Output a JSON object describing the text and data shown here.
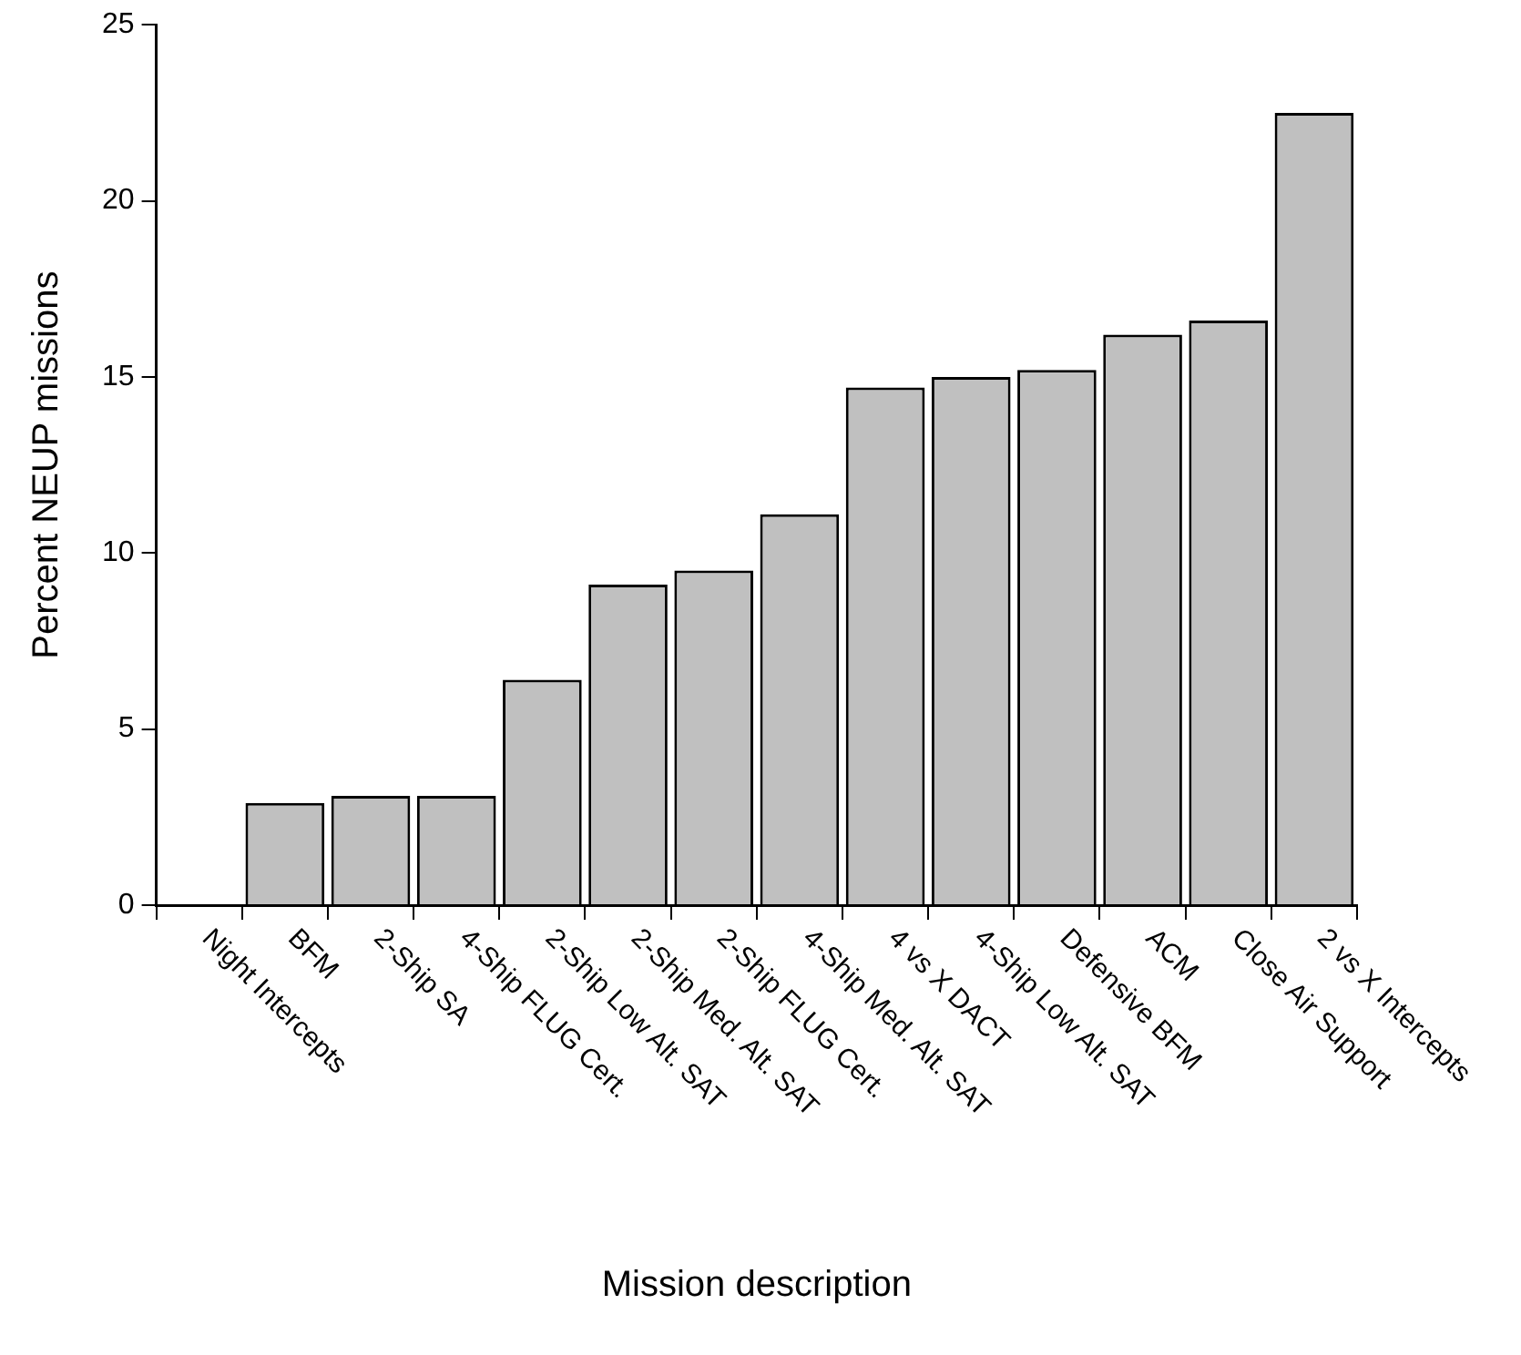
{
  "chart_data": {
    "type": "bar",
    "xlabel": "Mission description",
    "ylabel": "Percent NEUP missions",
    "categories": [
      "Night Intercepts",
      "BFM",
      "2-Ship SA",
      "4-Ship FLUG Cert.",
      "2-Ship Low Alt. SAT",
      "2-Ship Med. Alt. SAT",
      "2-Ship FLUG Cert.",
      "4-Ship Med. Alt. SAT",
      "4 vs X DACT",
      "4-Ship Low Alt. SAT",
      "Defensive BFM",
      "ACM",
      "Close Air Support",
      "2 vs X Intercepts"
    ],
    "values": [
      0,
      2.9,
      3.1,
      3.1,
      6.4,
      9.1,
      9.5,
      11.1,
      14.7,
      15.0,
      15.2,
      16.2,
      16.6,
      22.5
    ],
    "color": "#c0c0c0",
    "ylim": [
      0,
      25
    ],
    "yticks": [
      0,
      5,
      10,
      15,
      20,
      25
    ],
    "grid": false,
    "legend": false
  }
}
